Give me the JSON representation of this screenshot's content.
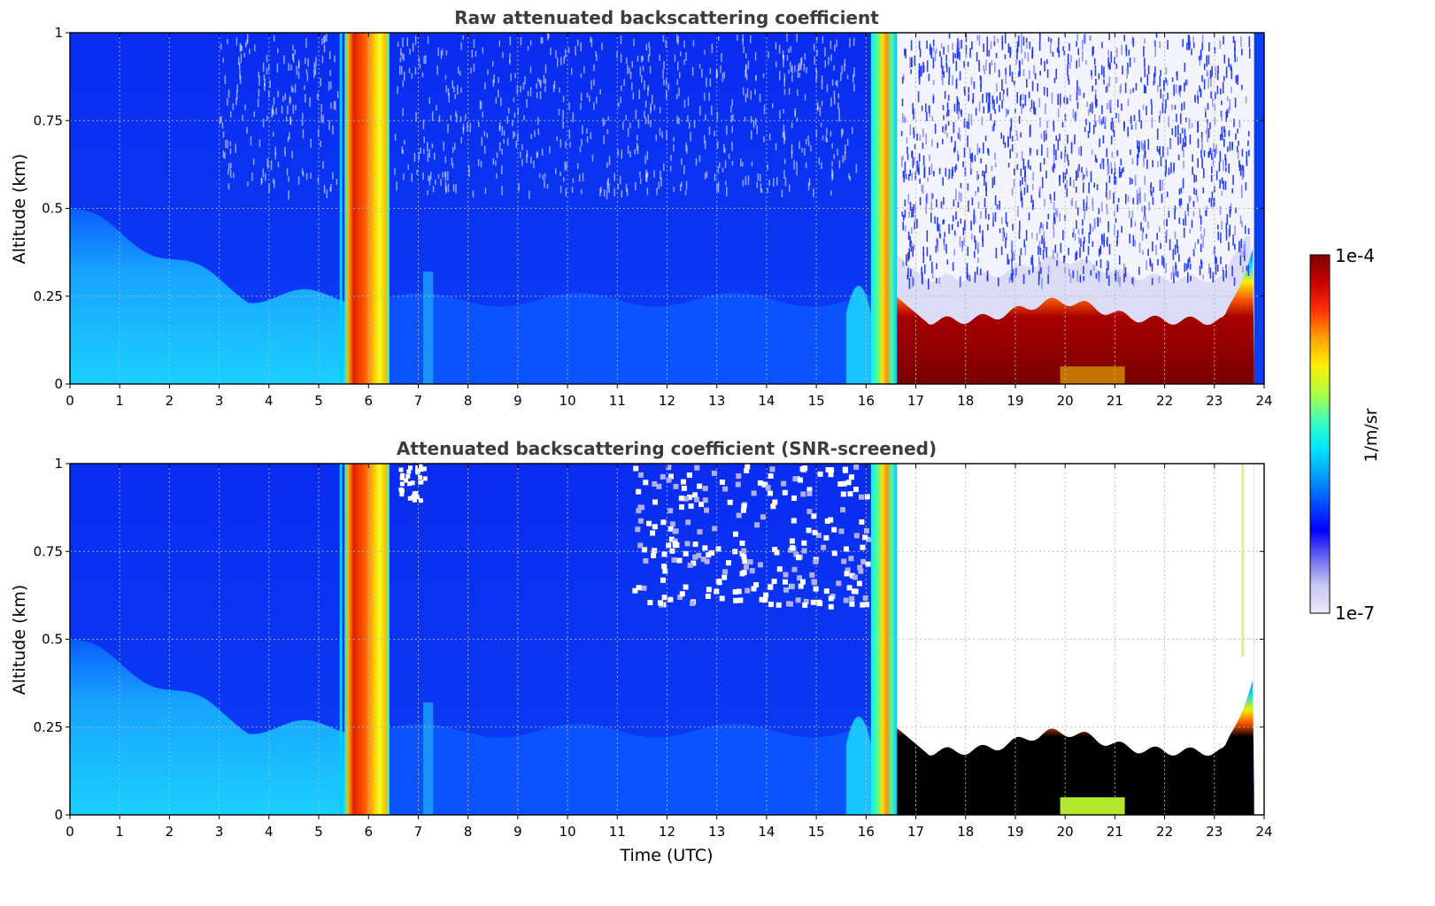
{
  "chart_data": [
    {
      "type": "heatmap",
      "title": "Raw attenuated backscattering coefficient",
      "xlabel": "",
      "ylabel": "Altitude (km)",
      "xlim": [
        0,
        24
      ],
      "ylim": [
        0,
        1
      ],
      "xticks": [
        "0",
        "1",
        "2",
        "3",
        "4",
        "5",
        "6",
        "7",
        "8",
        "9",
        "10",
        "11",
        "12",
        "13",
        "14",
        "15",
        "16",
        "17",
        "18",
        "19",
        "20",
        "21",
        "22",
        "23",
        "24"
      ],
      "yticks": [
        "0",
        "0.25",
        "0.5",
        "0.75",
        "1"
      ],
      "grid": true,
      "colorscale": "jet (log)",
      "features": [
        {
          "time_range": [
            0,
            5.6
          ],
          "description": "aerosol layer, top descending from about 0.5 km to 0.25 km",
          "level": "cyan"
        },
        {
          "time_range": [
            5.6,
            6.4
          ],
          "description": "full-column high backscatter (precipitation/cloud)",
          "level": "red-orange"
        },
        {
          "time_range": [
            7.1,
            7.3
          ],
          "description": "thin elevated feature near 0.3 km",
          "level": "light blue"
        },
        {
          "time_range": [
            15.7,
            16.0
          ],
          "description": "aerosol bump near 0.3 km",
          "level": "cyan"
        },
        {
          "time_range": [
            16.2,
            16.6
          ],
          "description": "full-column high backscatter",
          "level": "yellow-cyan"
        },
        {
          "time_range": [
            16.6,
            23.8
          ],
          "description": "fog/low cloud layer, top between 0.15 and 0.28 km",
          "level": "dark red"
        },
        {
          "time_range": [
            16.6,
            23.8
          ],
          "description": "noisy region above cloud",
          "level": "white/pale"
        }
      ]
    },
    {
      "type": "heatmap",
      "title": "Attenuated backscattering coefficient (SNR-screened)",
      "xlabel": "Time (UTC)",
      "ylabel": "Altitude (km)",
      "xlim": [
        0,
        24
      ],
      "ylim": [
        0,
        1
      ],
      "xticks": [
        "0",
        "1",
        "2",
        "3",
        "4",
        "5",
        "6",
        "7",
        "8",
        "9",
        "10",
        "11",
        "12",
        "13",
        "14",
        "15",
        "16",
        "17",
        "18",
        "19",
        "20",
        "21",
        "22",
        "23",
        "24"
      ],
      "yticks": [
        "0",
        "0.25",
        "0.5",
        "0.75",
        "1"
      ],
      "grid": true,
      "colorscale": "jet (log)",
      "features": [
        {
          "time_range": [
            0,
            5.6
          ],
          "description": "aerosol layer, top descending from about 0.5 km to 0.25 km",
          "level": "cyan"
        },
        {
          "time_range": [
            5.6,
            6.4
          ],
          "description": "full-column high backscatter",
          "level": "red-orange"
        },
        {
          "time_range": [
            11.3,
            16.0
          ],
          "description": "screened gaps above 0.6 km",
          "level": "white"
        },
        {
          "time_range": [
            16.6,
            23.8
          ],
          "description": "fog/low cloud, saturated core",
          "level": "black"
        },
        {
          "time_range": [
            16.6,
            23.8
          ],
          "description": "screened region above cloud",
          "level": "white"
        }
      ]
    }
  ],
  "colorbar": {
    "label": "1/m/sr",
    "max_label": "1e-4",
    "min_label": "1e-7",
    "range": [
      1e-07,
      0.0001
    ],
    "scale": "log",
    "colors": [
      "#ece8f8",
      "#c8c8f4",
      "#6a6af0",
      "#0000ff",
      "#0050ff",
      "#00a0ff",
      "#00e8ff",
      "#40ffb8",
      "#b0ff40",
      "#ffee00",
      "#ffa000",
      "#ff3000",
      "#c80000",
      "#800000"
    ]
  },
  "colors": {
    "title_text": "#3c3c3c",
    "deep_blue": "#0a28f0",
    "mid_blue": "#0064ff",
    "aerosol_cyan": "#18c8ff",
    "cloud_red": "#7a0000",
    "saturated_black": "#000000"
  }
}
